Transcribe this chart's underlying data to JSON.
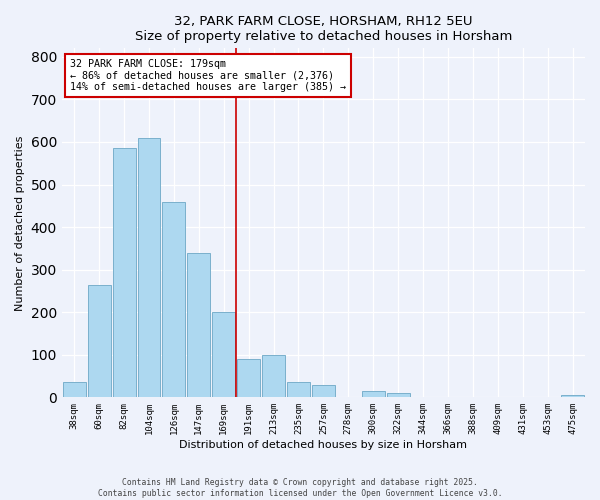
{
  "title": "32, PARK FARM CLOSE, HORSHAM, RH12 5EU",
  "subtitle": "Size of property relative to detached houses in Horsham",
  "xlabel": "Distribution of detached houses by size in Horsham",
  "ylabel": "Number of detached properties",
  "bar_labels": [
    "38sqm",
    "60sqm",
    "82sqm",
    "104sqm",
    "126sqm",
    "147sqm",
    "169sqm",
    "191sqm",
    "213sqm",
    "235sqm",
    "257sqm",
    "278sqm",
    "300sqm",
    "322sqm",
    "344sqm",
    "366sqm",
    "388sqm",
    "409sqm",
    "431sqm",
    "453sqm",
    "475sqm"
  ],
  "bar_values": [
    35,
    265,
    585,
    610,
    460,
    340,
    200,
    90,
    100,
    35,
    30,
    0,
    15,
    10,
    0,
    0,
    0,
    0,
    0,
    0,
    5
  ],
  "bar_color": "#add8f0",
  "bar_edge_color": "#7ab0cc",
  "vline_color": "#cc0000",
  "annotation_title": "32 PARK FARM CLOSE: 179sqm",
  "annotation_line1": "← 86% of detached houses are smaller (2,376)",
  "annotation_line2": "14% of semi-detached houses are larger (385) →",
  "annotation_box_color": "#ffffff",
  "annotation_box_edge": "#cc0000",
  "ylim": [
    0,
    820
  ],
  "yticks": [
    0,
    100,
    200,
    300,
    400,
    500,
    600,
    700,
    800
  ],
  "footer1": "Contains HM Land Registry data © Crown copyright and database right 2025.",
  "footer2": "Contains public sector information licensed under the Open Government Licence v3.0.",
  "background_color": "#eef2fb"
}
